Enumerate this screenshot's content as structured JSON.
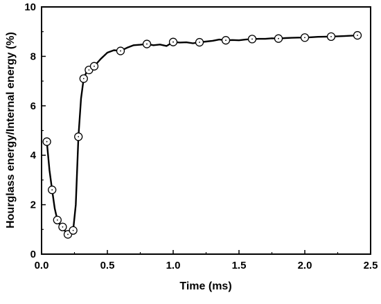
{
  "chart_data": {
    "type": "line",
    "title": "",
    "xlabel": "Time (ms)",
    "ylabel": "Hourglass energy/Internal energy (%)",
    "xlim": [
      0,
      2.5
    ],
    "ylim": [
      0,
      10
    ],
    "grid": false,
    "legend": "none",
    "x_ticks": [
      0.0,
      0.5,
      1.0,
      1.5,
      2.0,
      2.5
    ],
    "x_tick_labels": [
      "0.0",
      "0.5",
      "1.0",
      "1.5",
      "2.0",
      "2.5"
    ],
    "y_ticks": [
      0,
      2,
      4,
      6,
      8,
      10
    ],
    "y_tick_labels": [
      "0",
      "2",
      "4",
      "6",
      "8",
      "10"
    ],
    "colors": {
      "line": "#000000",
      "marker_fill": "#ffffff",
      "axis": "#000000"
    },
    "series": [
      {
        "curve": [
          [
            0.04,
            4.55
          ],
          [
            0.06,
            3.4
          ],
          [
            0.08,
            2.6
          ],
          [
            0.1,
            1.85
          ],
          [
            0.12,
            1.38
          ],
          [
            0.14,
            1.2
          ],
          [
            0.16,
            1.1
          ],
          [
            0.18,
            0.92
          ],
          [
            0.2,
            0.8
          ],
          [
            0.22,
            0.88
          ],
          [
            0.24,
            0.96
          ],
          [
            0.26,
            2.0
          ],
          [
            0.28,
            4.75
          ],
          [
            0.3,
            6.3
          ],
          [
            0.32,
            7.1
          ],
          [
            0.34,
            7.35
          ],
          [
            0.36,
            7.45
          ],
          [
            0.38,
            7.55
          ],
          [
            0.4,
            7.6
          ],
          [
            0.45,
            7.9
          ],
          [
            0.5,
            8.15
          ],
          [
            0.55,
            8.25
          ],
          [
            0.6,
            8.22
          ],
          [
            0.65,
            8.35
          ],
          [
            0.7,
            8.45
          ],
          [
            0.75,
            8.47
          ],
          [
            0.8,
            8.5
          ],
          [
            0.85,
            8.45
          ],
          [
            0.9,
            8.48
          ],
          [
            0.95,
            8.42
          ],
          [
            1.0,
            8.58
          ],
          [
            1.05,
            8.56
          ],
          [
            1.1,
            8.57
          ],
          [
            1.15,
            8.53
          ],
          [
            1.2,
            8.57
          ],
          [
            1.25,
            8.6
          ],
          [
            1.3,
            8.63
          ],
          [
            1.35,
            8.68
          ],
          [
            1.4,
            8.65
          ],
          [
            1.45,
            8.66
          ],
          [
            1.5,
            8.65
          ],
          [
            1.55,
            8.68
          ],
          [
            1.6,
            8.7
          ],
          [
            1.65,
            8.71
          ],
          [
            1.7,
            8.71
          ],
          [
            1.75,
            8.73
          ],
          [
            1.8,
            8.72
          ],
          [
            1.85,
            8.74
          ],
          [
            1.9,
            8.75
          ],
          [
            1.95,
            8.76
          ],
          [
            2.0,
            8.76
          ],
          [
            2.1,
            8.79
          ],
          [
            2.2,
            8.8
          ],
          [
            2.3,
            8.82
          ],
          [
            2.4,
            8.85
          ]
        ],
        "markers": [
          [
            0.04,
            4.55
          ],
          [
            0.08,
            2.6
          ],
          [
            0.12,
            1.38
          ],
          [
            0.16,
            1.1
          ],
          [
            0.2,
            0.8
          ],
          [
            0.24,
            0.96
          ],
          [
            0.28,
            4.75
          ],
          [
            0.32,
            7.1
          ],
          [
            0.36,
            7.45
          ],
          [
            0.4,
            7.6
          ],
          [
            0.6,
            8.22
          ],
          [
            0.8,
            8.5
          ],
          [
            1.0,
            8.58
          ],
          [
            1.2,
            8.57
          ],
          [
            1.4,
            8.65
          ],
          [
            1.6,
            8.7
          ],
          [
            1.8,
            8.72
          ],
          [
            2.0,
            8.76
          ],
          [
            2.2,
            8.8
          ],
          [
            2.4,
            8.85
          ]
        ]
      }
    ]
  }
}
